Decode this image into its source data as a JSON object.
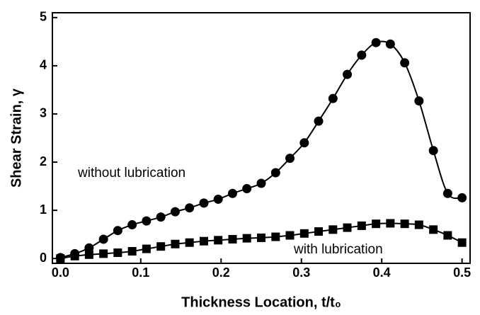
{
  "chart_data": {
    "type": "line",
    "xlabel": "Thickness Location, t/t₀",
    "ylabel": "Shear Strain, γ",
    "x": [
      0,
      0.0179,
      0.0357,
      0.0536,
      0.0714,
      0.0893,
      0.1071,
      0.125,
      0.1429,
      0.1607,
      0.1786,
      0.1964,
      0.2143,
      0.2321,
      0.25,
      0.2679,
      0.2857,
      0.3036,
      0.3214,
      0.3393,
      0.3571,
      0.375,
      0.3929,
      0.4107,
      0.4286,
      0.4464,
      0.4643,
      0.4821,
      0.5
    ],
    "series": [
      {
        "name": "without lubrication",
        "color": "#000000",
        "marker": "circle",
        "values": [
          0.02,
          0.1,
          0.22,
          0.4,
          0.58,
          0.7,
          0.78,
          0.86,
          0.97,
          1.05,
          1.15,
          1.23,
          1.35,
          1.45,
          1.56,
          1.78,
          2.08,
          2.4,
          2.85,
          3.32,
          3.82,
          4.22,
          4.48,
          4.45,
          4.06,
          3.27,
          2.24,
          1.35,
          1.26
        ]
      },
      {
        "name": "with lubrication",
        "color": "#000000",
        "marker": "square",
        "values": [
          0.0,
          0.05,
          0.08,
          0.1,
          0.12,
          0.15,
          0.2,
          0.25,
          0.3,
          0.33,
          0.36,
          0.38,
          0.4,
          0.42,
          0.43,
          0.45,
          0.48,
          0.52,
          0.56,
          0.6,
          0.64,
          0.68,
          0.72,
          0.73,
          0.72,
          0.7,
          0.6,
          0.48,
          0.33
        ]
      }
    ],
    "xlim": [
      -0.01,
      0.51
    ],
    "ylim": [
      -0.1,
      5.1
    ],
    "xticks": [
      {
        "value": 0,
        "label": "0.0"
      },
      0.1,
      0.2,
      0.3,
      0.4,
      0.5
    ],
    "yticks": [
      0,
      1,
      2,
      3,
      4,
      5
    ],
    "grid": false
  }
}
